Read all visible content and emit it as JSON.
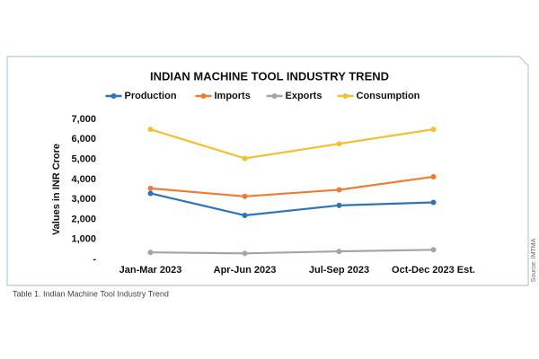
{
  "chart_data": {
    "type": "line",
    "title": "INDIAN MACHINE TOOL INDUSTRY TREND",
    "ylabel": "Values in INR Crore",
    "categories": [
      "Jan-Mar 2023",
      "Apr-Jun 2023",
      "Jul-Sep 2023",
      "Oct-Dec 2023 Est."
    ],
    "series": [
      {
        "name": "Production",
        "color": "#2e75b6",
        "values": [
          3300,
          2200,
          2700,
          2850
        ]
      },
      {
        "name": "Imports",
        "color": "#ed7d31",
        "values": [
          3550,
          3150,
          3480,
          4130
        ]
      },
      {
        "name": "Exports",
        "color": "#a5a5a5",
        "values": [
          350,
          300,
          400,
          480
        ]
      },
      {
        "name": "Consumption",
        "color": "#f2c12e",
        "values": [
          6500,
          5050,
          5780,
          6500
        ]
      }
    ],
    "ylim": [
      0,
      7000
    ],
    "yticks": [
      {
        "value": 0,
        "label": "-"
      },
      {
        "value": 1000,
        "label": "1,000"
      },
      {
        "value": 2000,
        "label": "2,000"
      },
      {
        "value": 3000,
        "label": "3,000"
      },
      {
        "value": 4000,
        "label": "4,000"
      },
      {
        "value": 5000,
        "label": "5,000"
      },
      {
        "value": 6000,
        "label": "6,000"
      },
      {
        "value": 7000,
        "label": "7,000"
      }
    ],
    "grid": false,
    "legend": "top",
    "source": "Source: IMTMA",
    "caption": "Table 1. Indian Machine Tool Industry Trend"
  }
}
